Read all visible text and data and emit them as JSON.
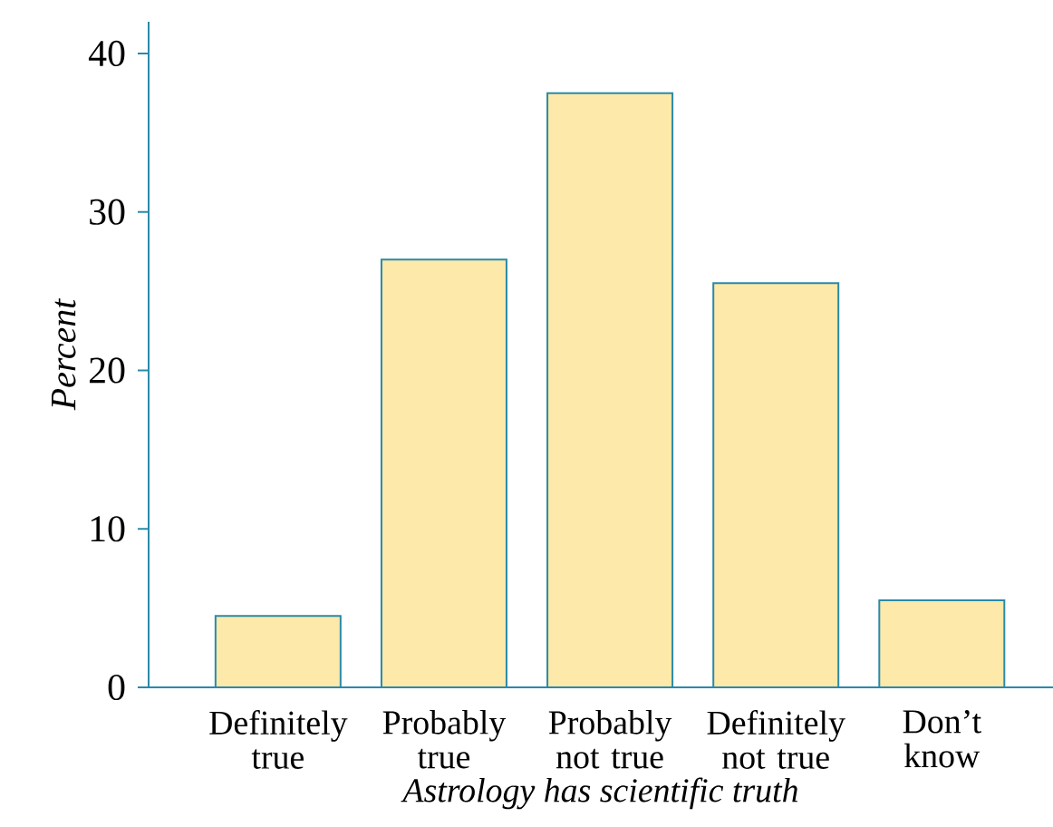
{
  "chart_data": {
    "type": "bar",
    "xlabel": "Astrology has scientific truth",
    "ylabel": "Percent",
    "categories": [
      "Definitely true",
      "Probably true",
      "Probably not true",
      "Definitely not true",
      "Don’t know"
    ],
    "values": [
      4.5,
      27,
      37.5,
      25.5,
      5.5
    ],
    "color": "#fde9a9",
    "ylim": [
      0,
      42
    ],
    "yticks": [
      0,
      10,
      20,
      30,
      40
    ]
  }
}
